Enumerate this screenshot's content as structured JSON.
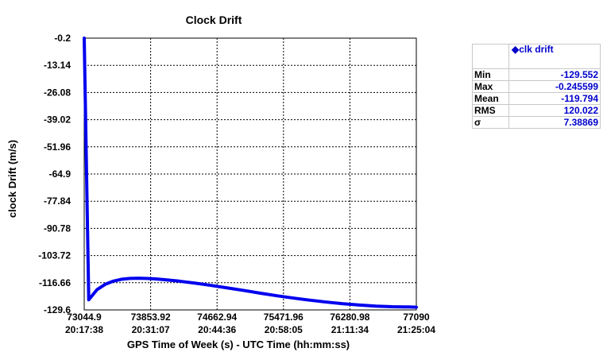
{
  "chart_data": {
    "type": "line",
    "title": "Clock Drift",
    "xlabel": "GPS Time of Week (s) - UTC Time (hh:mm:ss)",
    "ylabel": "clock Drift (m/s)",
    "xlim": [
      73044.9,
      77090
    ],
    "ylim": [
      -129.6,
      -0.2
    ],
    "yticks": [
      "-0.2",
      "-13.14",
      "-26.08",
      "-39.02",
      "-51.96",
      "-64.9",
      "-77.84",
      "-90.78",
      "-103.72",
      "-116.66",
      "-129.6"
    ],
    "xticks": [
      {
        "gps": "73044.9",
        "utc": "20:17:38"
      },
      {
        "gps": "73853.92",
        "utc": "20:31:07"
      },
      {
        "gps": "74662.94",
        "utc": "20:44:36"
      },
      {
        "gps": "75471.96",
        "utc": "20:58:05"
      },
      {
        "gps": "76280.98",
        "utc": "21:11:34"
      },
      {
        "gps": "77090",
        "utc": "21:25:04"
      }
    ],
    "grid": true,
    "series": [
      {
        "name": "clk drift",
        "color": "#0000ee",
        "x": [
          73044.9,
          73100,
          73200,
          73300,
          73400,
          73500,
          73600,
          73700,
          73800,
          73900,
          74000,
          74200,
          74400,
          74600,
          74800,
          75000,
          75200,
          75400,
          75600,
          75800,
          76000,
          76200,
          76400,
          76600,
          76800,
          77000,
          77090
        ],
        "y": [
          -0.2,
          -124.8,
          -120.0,
          -117.4,
          -115.9,
          -115.0,
          -114.6,
          -114.5,
          -114.6,
          -114.8,
          -115.1,
          -115.9,
          -116.9,
          -118.0,
          -119.2,
          -120.4,
          -121.7,
          -122.9,
          -124.0,
          -125.0,
          -125.9,
          -126.7,
          -127.3,
          -127.8,
          -128.1,
          -128.2,
          -128.3
        ]
      }
    ]
  },
  "stats": {
    "series_label": "clk drift",
    "rows": [
      {
        "label": "Min",
        "value": "-129.552"
      },
      {
        "label": "Max",
        "value": "-0.245599"
      },
      {
        "label": "Mean",
        "value": "-119.794"
      },
      {
        "label": "RMS",
        "value": "120.022"
      },
      {
        "label": "σ",
        "value": "7.38869"
      }
    ]
  }
}
